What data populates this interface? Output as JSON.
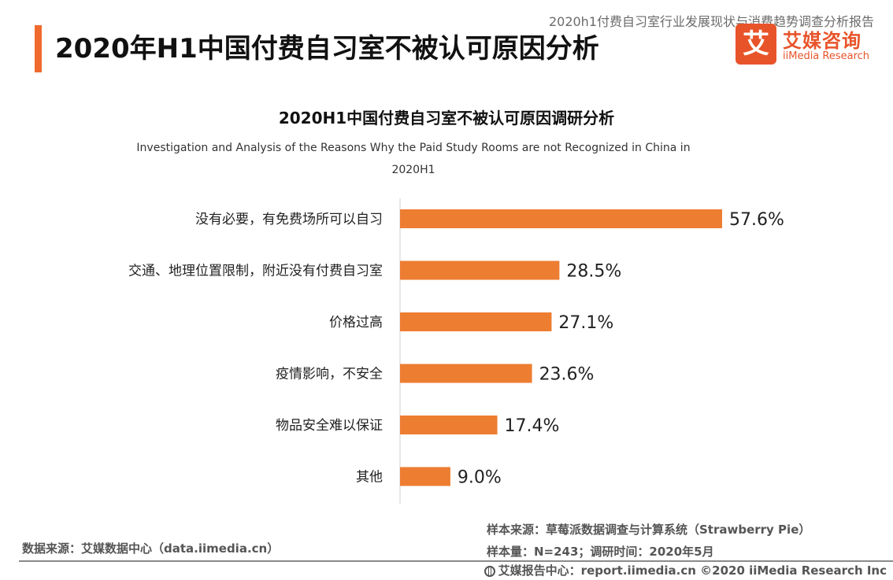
{
  "header": {
    "report_title": "2020h1付费自习室行业发展现状与消费趋势调查分析报告",
    "page_title": "2020年H1中国付费自习室不被认可原因分析",
    "logo_mark": "艾",
    "logo_cn": "艾媒咨询",
    "logo_en": "iiMedia Research"
  },
  "chart_data": {
    "type": "bar",
    "orientation": "horizontal",
    "title": "2020H1中国付费自习室不被认可原因调研分析",
    "subtitle_line1": "Investigation and Analysis of the Reasons Why the Paid Study Rooms are not Recognized in China in",
    "subtitle_line2": "2020H1",
    "categories": [
      "没有必要，有免费场所可以自习",
      "交通、地理位置限制，附近没有付费自习室",
      "价格过高",
      "疫情影响，不安全",
      "物品安全难以保证",
      "其他"
    ],
    "values": [
      57.6,
      28.5,
      27.1,
      23.6,
      17.4,
      9.0
    ],
    "value_labels": [
      "57.6%",
      "28.5%",
      "27.1%",
      "23.6%",
      "17.4%",
      "9.0%"
    ],
    "unit": "%",
    "bar_color": "#ed7d31",
    "grid": false,
    "legend": "none"
  },
  "footer": {
    "data_source": "数据来源：艾媒数据中心（data.iimedia.cn）",
    "sample_source": "样本来源：草莓派数据调查与计算系统（Strawberry Pie）",
    "sample_size": "样本量：N=243；调研时间：2020年5月",
    "copyright": "艾媒报告中心：report.iimedia.cn  ©2020  iiMedia Research  Inc"
  }
}
